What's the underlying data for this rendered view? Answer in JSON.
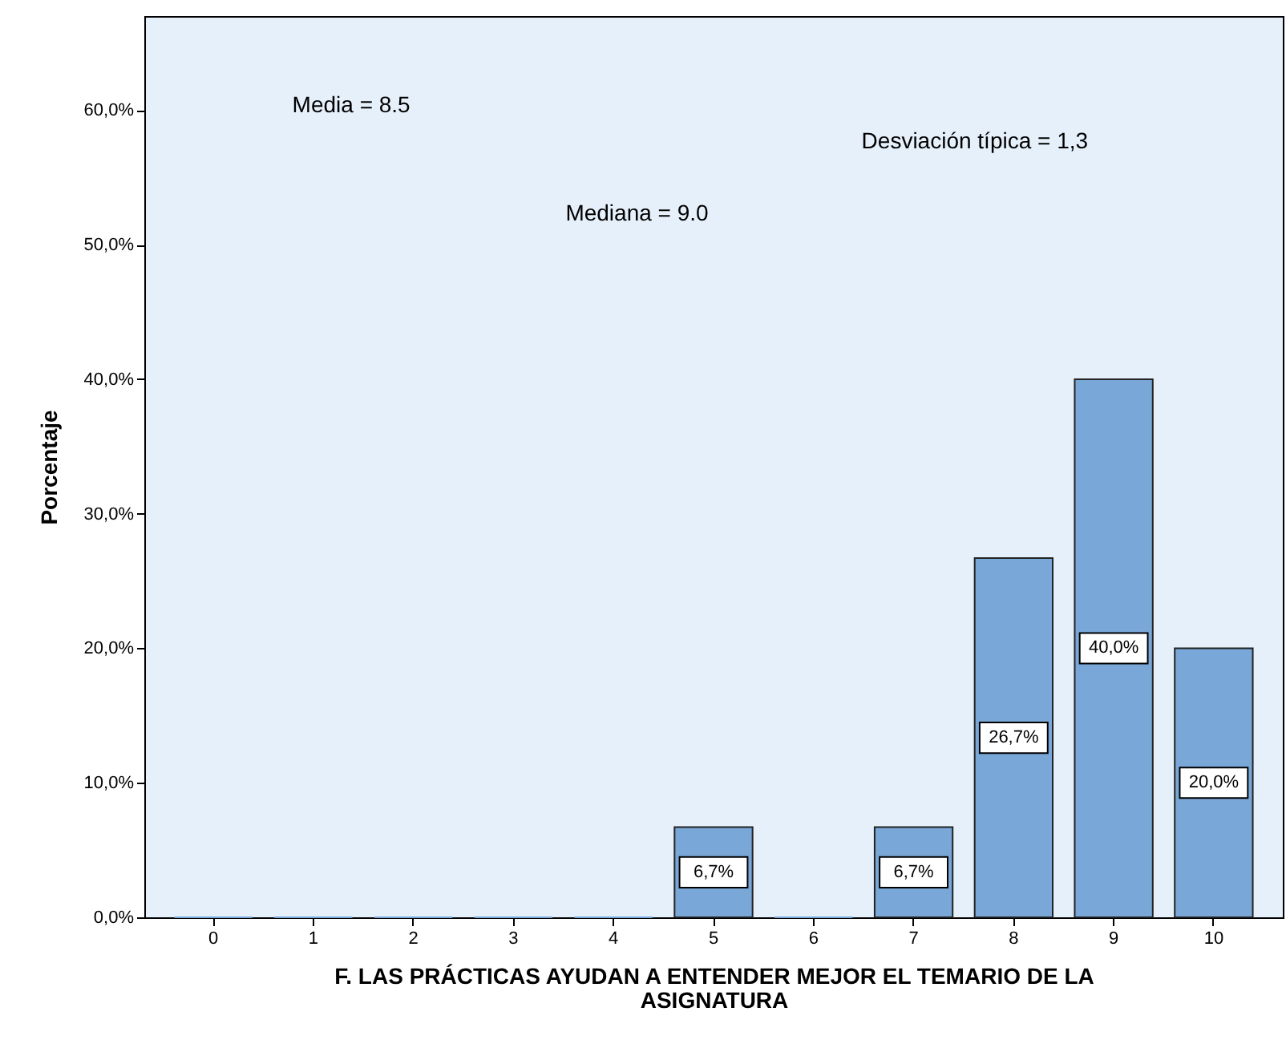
{
  "chart_data": {
    "type": "bar",
    "xlabel": "F. LAS PRÁCTICAS AYUDAN A ENTENDER MEJOR EL TEMARIO DE LA ASIGNATURA",
    "ylabel": "Porcentaje",
    "categories": [
      "0",
      "1",
      "2",
      "3",
      "4",
      "5",
      "6",
      "7",
      "8",
      "9",
      "10"
    ],
    "values": [
      0,
      0,
      0,
      0,
      0,
      6.7,
      0,
      6.7,
      26.7,
      40,
      20
    ],
    "value_labels": [
      null,
      null,
      null,
      null,
      null,
      "6,7%",
      null,
      "6,7%",
      "26,7%",
      "40,0%",
      "20,0%"
    ],
    "color": "#79a7d7",
    "ylim": [
      0,
      67
    ],
    "yticks": [
      {
        "value": 0,
        "label": "0,0%"
      },
      {
        "value": 10,
        "label": "10,0%"
      },
      {
        "value": 20,
        "label": "20,0%"
      },
      {
        "value": 30,
        "label": "30,0%"
      },
      {
        "value": 40,
        "label": "40,0%"
      },
      {
        "value": 50,
        "label": "50,0%"
      },
      {
        "value": 60,
        "label": "60,0%"
      }
    ],
    "annotations": [
      "Media = 8.5",
      "Mediana = 9.0",
      "Desviación típica = 1,3"
    ],
    "grid": false
  }
}
